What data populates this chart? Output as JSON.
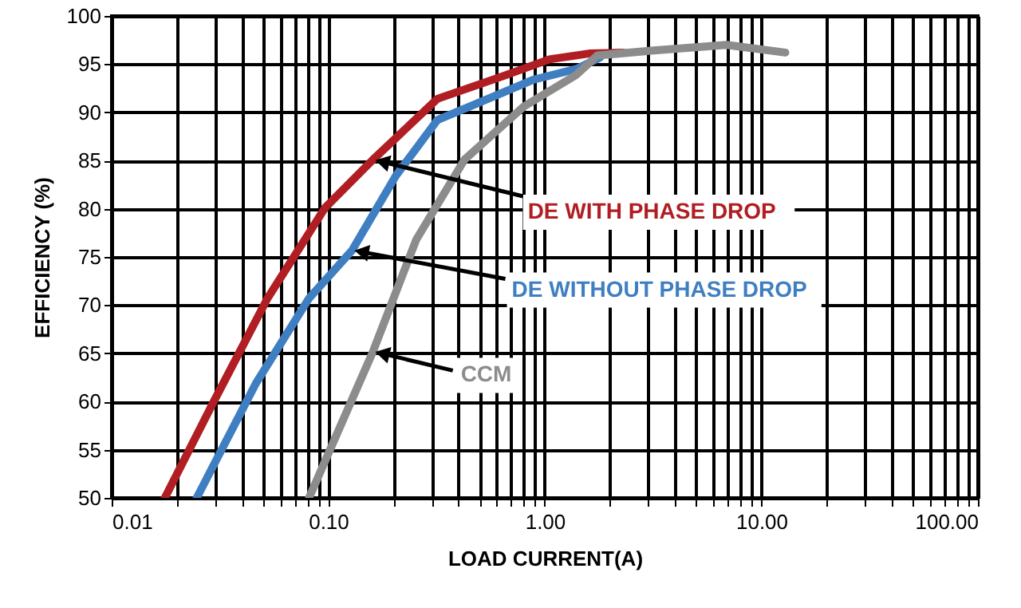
{
  "chart_data": {
    "type": "line",
    "xlabel": "LOAD CURRENT(A)",
    "ylabel": "EFFICIENCY (%)",
    "log": "x",
    "grid": true,
    "line_style": "solid",
    "marker": "none",
    "xlim": [
      0.01,
      100
    ],
    "ylim": [
      50,
      100
    ],
    "xticks": [
      {
        "value": 0.01,
        "label": "0.01"
      },
      {
        "value": 0.02,
        "label": null
      },
      {
        "value": 0.03,
        "label": null
      },
      {
        "value": 0.04,
        "label": null
      },
      {
        "value": 0.05,
        "label": null
      },
      {
        "value": 0.06,
        "label": null
      },
      {
        "value": 0.07,
        "label": null
      },
      {
        "value": 0.08,
        "label": null
      },
      {
        "value": 0.09,
        "label": null
      },
      {
        "value": 0.1,
        "label": "0.10"
      },
      {
        "value": 0.2,
        "label": null
      },
      {
        "value": 0.3,
        "label": null
      },
      {
        "value": 0.4,
        "label": null
      },
      {
        "value": 0.5,
        "label": null
      },
      {
        "value": 0.6,
        "label": null
      },
      {
        "value": 0.7,
        "label": null
      },
      {
        "value": 0.8,
        "label": null
      },
      {
        "value": 0.9,
        "label": null
      },
      {
        "value": 1,
        "label": "1.00"
      },
      {
        "value": 2,
        "label": null
      },
      {
        "value": 3,
        "label": null
      },
      {
        "value": 4,
        "label": null
      },
      {
        "value": 5,
        "label": null
      },
      {
        "value": 6,
        "label": null
      },
      {
        "value": 7,
        "label": null
      },
      {
        "value": 8,
        "label": null
      },
      {
        "value": 9,
        "label": null
      },
      {
        "value": 10,
        "label": "10.00"
      },
      {
        "value": 20,
        "label": null
      },
      {
        "value": 30,
        "label": null
      },
      {
        "value": 40,
        "label": null
      },
      {
        "value": 50,
        "label": null
      },
      {
        "value": 60,
        "label": null
      },
      {
        "value": 70,
        "label": null
      },
      {
        "value": 80,
        "label": null
      },
      {
        "value": 90,
        "label": null
      },
      {
        "value": 100,
        "label": "100.00"
      }
    ],
    "yticks": [
      50,
      55,
      60,
      65,
      70,
      75,
      80,
      85,
      90,
      95,
      100
    ],
    "series": [
      {
        "name": "DE WITH PHASE DROP",
        "color": "#b01e23",
        "x": [
          0.0176,
          0.0293,
          0.0524,
          0.0967,
          0.161,
          0.319,
          0.63,
          1.05,
          1.6,
          2.3
        ],
        "values": [
          50,
          59.8,
          70.7,
          80.1,
          85.1,
          91.4,
          93.7,
          95.5,
          96.1,
          96.2
        ]
      },
      {
        "name": "DE WITHOUT PHASE DROP",
        "color": "#3f7fc1",
        "x": [
          0.0247,
          0.0464,
          0.0815,
          0.129,
          0.205,
          0.319,
          0.449,
          0.89,
          1.4,
          1.8
        ],
        "values": [
          50,
          61.9,
          70.7,
          75.7,
          83.4,
          89.2,
          90.6,
          93.4,
          94.5,
          95.7
        ]
      },
      {
        "name": "CCM",
        "color": "#8c8c8c",
        "x": [
          0.0815,
          0.161,
          0.255,
          0.426,
          0.8,
          1.4,
          1.75,
          3.1,
          6.9,
          12.9
        ],
        "values": [
          50,
          65.2,
          76.8,
          85.1,
          90.6,
          93.9,
          95.9,
          96.4,
          97,
          96.2
        ]
      }
    ]
  }
}
